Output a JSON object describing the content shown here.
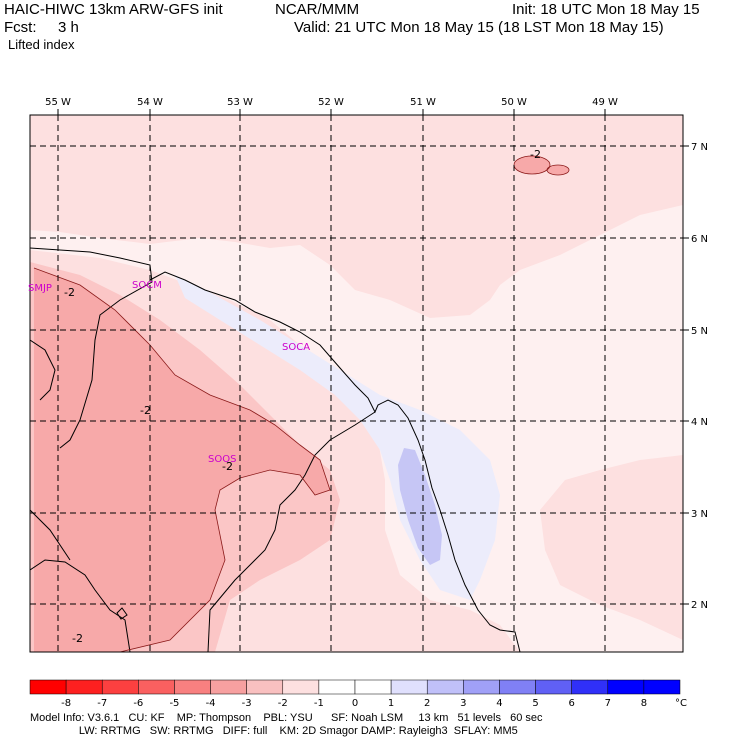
{
  "header": {
    "model": "HAIC-HIWC 13km ARW-GFS init",
    "center": "NCAR/MMM",
    "init": "Init: 18 UTC Mon 18 May 15",
    "fcst_label": "Fcst:",
    "fcst_value": "3 h",
    "valid": "Valid: 21 UTC Mon 18 May 15 (18 LST Mon 18 May 15)",
    "field": "Lifted index"
  },
  "map": {
    "lon_labels": [
      "55 W",
      "54 W",
      "53 W",
      "52 W",
      "51 W",
      "50 W",
      "49 W"
    ],
    "lat_labels": [
      "7 N",
      "6 N",
      "5 N",
      "4 N",
      "3 N",
      "2 N"
    ],
    "stations": [
      "SMJP",
      "SOCA",
      "SOCM",
      "SOOS"
    ],
    "contour_labels": [
      "-2",
      "-2",
      "-2",
      "-2",
      "-2"
    ],
    "colors": {
      "d1": "#fde0e0",
      "d2": "#fbc6c6",
      "d3": "#f7a9a9",
      "w1": "#ececfb",
      "w2": "#c6c6f5"
    }
  },
  "legend": {
    "labels": [
      "-8",
      "-7",
      "-6",
      "-5",
      "-4",
      "-3",
      "-2",
      "-1",
      "0",
      "1",
      "2",
      "3",
      "4",
      "5",
      "6",
      "7",
      "8"
    ],
    "unit": "°C",
    "colors": [
      "#ff0000",
      "#fd2020",
      "#fc4040",
      "#fa6060",
      "#f88080",
      "#f7a0a0",
      "#f9c0c0",
      "#fde0e0",
      "#ffffff",
      "#ffffff",
      "#e0e0fd",
      "#c0c0f9",
      "#a0a0f7",
      "#8080f5",
      "#6060f5",
      "#3030f8",
      "#0000ff",
      "#0000ff"
    ]
  },
  "footer": {
    "line1": "Model Info: V3.6.1   CU: KF    MP: Thompson    PBL: YSU      SF: Noah LSM     13 km   51 levels   60 sec",
    "line2": "                LW: RRTMG   SW: RRTMG   DIFF: full    KM: 2D Smagor DAMP: Rayleigh3  SFLAY: MM5"
  }
}
